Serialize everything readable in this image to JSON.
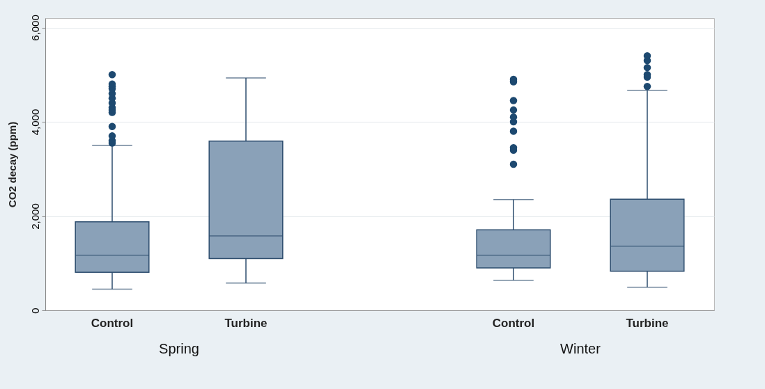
{
  "chart_data": {
    "type": "box",
    "categories": [
      "Control",
      "Turbine",
      "Control",
      "Turbine"
    ],
    "ylabel": "CO2 decay (ppm)",
    "ylim": [
      0,
      6200
    ],
    "yticks": [
      {
        "value": 0,
        "label": "0"
      },
      {
        "value": 2000,
        "label": "2,000"
      },
      {
        "value": 4000,
        "label": "4,000"
      },
      {
        "value": 6000,
        "label": "6,000"
      }
    ],
    "grid": "y",
    "marker": "circle",
    "series": [
      {
        "color": "#8aa1b8",
        "boxes": [
          {
            "low": 450,
            "q1": 810,
            "median": 1170,
            "q3": 1880,
            "high": 3500,
            "outliers": [
              3550,
              3600,
              3700,
              3900,
              4200,
              4250,
              4300,
              4400,
              4500,
              4600,
              4700,
              4750,
              4800,
              5000
            ]
          },
          {
            "low": 580,
            "q1": 1100,
            "median": 1580,
            "q3": 3590,
            "high": 4930
          },
          {
            "low": 640,
            "q1": 900,
            "median": 1170,
            "q3": 1710,
            "high": 2350,
            "outliers": [
              3100,
              3400,
              3450,
              3800,
              4000,
              4100,
              4250,
              4450,
              4850,
              4900
            ]
          },
          {
            "low": 490,
            "q1": 830,
            "median": 1360,
            "q3": 2360,
            "high": 4670,
            "outliers": [
              4750,
              4950,
              5000,
              5150,
              5300,
              5400
            ]
          }
        ]
      }
    ],
    "annotations": [
      {
        "text": "Spring"
      },
      {
        "text": "Winter"
      }
    ]
  }
}
